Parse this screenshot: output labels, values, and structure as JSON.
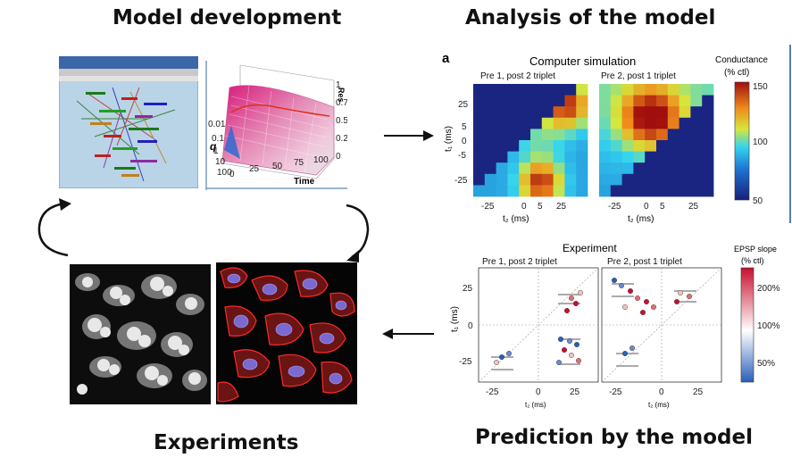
{
  "titles": {
    "model_development": "Model development",
    "analysis": "Analysis of the model",
    "experiments": "Experiments",
    "prediction": "Prediction by the model"
  },
  "surface_plot": {
    "z_label": "Res",
    "y_label": "q",
    "x_label": "Time",
    "x_ticks": [
      "0",
      "25",
      "50",
      "75",
      "100"
    ],
    "y_ticks": [
      "0.01",
      "0.1",
      "1",
      "10",
      "100"
    ],
    "z_ticks": [
      "0",
      "0.25",
      "0.5",
      "0.75",
      "1"
    ]
  },
  "simulation": {
    "panel_letter": "a",
    "title": "Computer simulation",
    "left_panel_title": "Pre 1, post 2 triplet",
    "right_panel_title": "Pre 2, post 1 triplet",
    "y_axis_label": "t₁ (ms)",
    "x_axis_label": "t₂ (ms)",
    "y_ticks": [
      "25",
      "5",
      "0",
      "-5",
      "-25"
    ],
    "x_ticks": [
      "-25",
      "0",
      "5",
      "25"
    ],
    "colorbar_title": "Conductance",
    "colorbar_unit": "(% ctl)",
    "colorbar_ticks": [
      "150",
      "100",
      "50"
    ],
    "colors": {
      "low": "#1a1f7a",
      "mid": "#34b4e6",
      "high": "#d11a14"
    }
  },
  "experiment": {
    "title": "Experiment",
    "left_panel_title": "Pre 1, post 2 triplet",
    "right_panel_title": "Pre 2, post 1 triplet",
    "y_axis_label": "t₁ (ms)",
    "x_axis_label": "t₂ (ms)",
    "y_ticks": [
      "25",
      "0",
      "-25"
    ],
    "x_ticks": [
      "-25",
      "0",
      "25"
    ],
    "colorbar_title": "EPSP slope",
    "colorbar_unit": "(% ctl)",
    "colorbar_ticks": [
      "200%",
      "100%",
      "50%"
    ]
  },
  "micrographs": {
    "left": "fluorescence-micrograph",
    "right": "segmented-cells"
  },
  "flow": [
    "Model development",
    "Analysis of the model",
    "Prediction by the model",
    "Experiments"
  ]
}
